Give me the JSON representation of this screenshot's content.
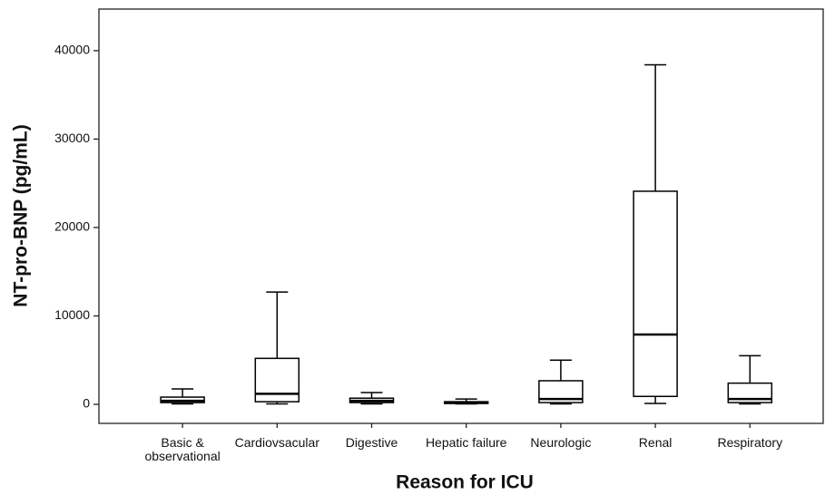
{
  "chart_data": {
    "type": "box",
    "x_label": "Reason for ICU",
    "y_label": "NT-pro-BNP (pg/mL)",
    "categories": [
      "Basic & observational",
      "Cardiovsacular",
      "Digestive",
      "Hepatic failure",
      "Neurologic",
      "Renal",
      "Respiratory"
    ],
    "boxes": [
      {
        "min": 50,
        "q1": 200,
        "median": 400,
        "q3": 820,
        "max": 1750
      },
      {
        "min": 50,
        "q1": 300,
        "median": 1200,
        "q3": 5200,
        "max": 12700
      },
      {
        "min": 50,
        "q1": 200,
        "median": 400,
        "q3": 700,
        "max": 1330
      },
      {
        "min": 50,
        "q1": 100,
        "median": 200,
        "q3": 300,
        "max": 600
      },
      {
        "min": 50,
        "q1": 200,
        "median": 600,
        "q3": 2670,
        "max": 5000
      },
      {
        "min": 100,
        "q1": 900,
        "median": 7900,
        "q3": 24100,
        "max": 38400
      },
      {
        "min": 50,
        "q1": 200,
        "median": 600,
        "q3": 2400,
        "max": 5500
      }
    ],
    "color": "#000000",
    "ylim": [
      -2150,
      44700
    ],
    "yticks": [
      0,
      10000,
      20000,
      30000,
      40000
    ]
  }
}
